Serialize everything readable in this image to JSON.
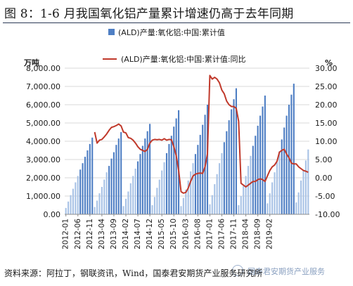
{
  "title": "图 8：1-6 月我国氧化铝产量累计增速仍高于去年同期",
  "source": "资料来源：阿拉丁，钢联资讯，Wind，国泰君安期货产业服务研究所",
  "watermark": "国泰君安期货产业服务",
  "colors": {
    "bar": "#4f7fc4",
    "bar_light": "#a9c3e6",
    "line": "#c0392b",
    "grid": "#d9d9d9"
  },
  "chart_data": {
    "type": "bar",
    "left_axis_title": "万吨",
    "right_axis_title": "%",
    "ylim_left": [
      0,
      8000
    ],
    "ylim_right": [
      -10,
      30
    ],
    "y_ticks_left": [
      "0.00",
      "1,000.00",
      "2,000.00",
      "3,000.00",
      "4,000.00",
      "5,000.00",
      "6,000.00",
      "7,000.00",
      "8,000.00"
    ],
    "y_ticks_right": [
      "-10.00",
      "-5.00",
      "0.00",
      "5.00",
      "10.00",
      "15.00",
      "20.00",
      "25.00",
      "30.00"
    ],
    "x_tick_labels": [
      "2012-01",
      "2012-06",
      "2012-11",
      "2013-04",
      "2013-09",
      "2014-02",
      "2014-07",
      "2014-12",
      "2015-05",
      "2015-10",
      "2016-03",
      "2016-08",
      "2017-01",
      "2017-06",
      "2017-11",
      "2018-04",
      "2018-09",
      "2019-02"
    ],
    "legend": [
      "(ALD)产量:氧化铝:中国:累计值",
      "(ALD)产量:氧化铝:中国:累计值:同比"
    ],
    "series": [
      {
        "name": "(ALD)产量:氧化铝:中国:累计值",
        "axis": "left",
        "values": [
          350,
          700,
          1050,
          1400,
          1750,
          2100,
          2450,
          2800,
          3150,
          3500,
          3850,
          4200,
          400,
          750,
          1150,
          1500,
          1900,
          2300,
          2650,
          3050,
          3400,
          3800,
          4150,
          4500,
          450,
          850,
          1250,
          1700,
          2100,
          2500,
          2900,
          3300,
          3750,
          4150,
          4550,
          4950,
          500,
          950,
          1450,
          1900,
          2400,
          2850,
          3350,
          3850,
          4300,
          4800,
          5250,
          5700,
          450,
          900,
          1350,
          1850,
          2350,
          2800,
          3300,
          3800,
          4350,
          4900,
          5450,
          6000,
          550,
          1050,
          1650,
          2200,
          2800,
          3350,
          3950,
          4550,
          5150,
          5750,
          6300,
          6900,
          500,
          1000,
          1550,
          2100,
          2650,
          3200,
          3750,
          4300,
          4850,
          5400,
          5900,
          6500,
          600,
          1150,
          1750,
          2300,
          2850,
          3450,
          4100,
          4750,
          5400,
          6000,
          6550,
          7150,
          650,
          1200,
          1850,
          2400,
          2950,
          3550
        ]
      },
      {
        "name": "(ALD)产量:氧化铝:中国:累计值:同比",
        "axis": "right",
        "values": [
          null,
          null,
          null,
          null,
          null,
          null,
          null,
          null,
          null,
          null,
          null,
          null,
          12.5,
          9.5,
          10.3,
          10.5,
          11.2,
          12.0,
          13.0,
          13.8,
          14.0,
          14.3,
          14.7,
          14.2,
          12.5,
          12.3,
          11.0,
          10.8,
          10.3,
          9.5,
          8.5,
          7.8,
          7.5,
          7.2,
          7.8,
          9.5,
          10.3,
          10.5,
          10.4,
          10.5,
          10.3,
          10.7,
          10.3,
          10.5,
          10.4,
          8.5,
          6.0,
          2.0,
          -3.8,
          -4.2,
          -4.0,
          -2.8,
          -1.0,
          0.5,
          1.0,
          1.2,
          1.3,
          1.2,
          3.0,
          6.5,
          28.0,
          27.0,
          27.5,
          27.0,
          26.0,
          24.0,
          23.0,
          21.0,
          20.0,
          19.5,
          19.5,
          19.0,
          15.5,
          -1.5,
          -2.0,
          -2.5,
          -2.0,
          -1.5,
          -1.0,
          -1.0,
          -0.5,
          -0.3,
          -0.5,
          -1.0,
          0.5,
          2.0,
          3.0,
          3.5,
          4.5,
          7.0,
          7.5,
          7.8,
          6.5,
          5.5,
          4.0,
          3.8,
          3.8,
          3.0,
          2.5,
          2.0,
          1.8,
          1.5
        ]
      }
    ]
  }
}
